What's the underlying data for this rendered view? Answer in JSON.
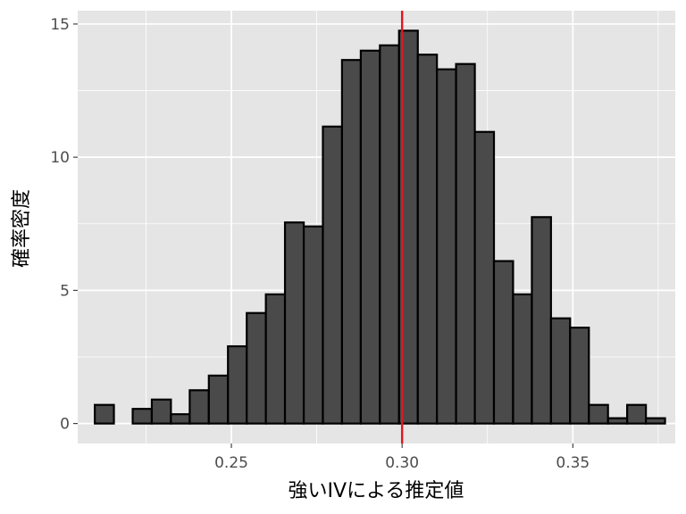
{
  "chart_data": {
    "type": "bar",
    "subtype": "histogram",
    "title": "",
    "xlabel": "強いIVによる推定値",
    "ylabel": "確率密度",
    "xlim": [
      0.205,
      0.38
    ],
    "ylim": [
      -0.75,
      15.5
    ],
    "x_ticks": [
      0.25,
      0.3,
      0.35
    ],
    "x_tick_labels": [
      "0.25",
      "0.30",
      "0.35"
    ],
    "y_ticks": [
      0,
      5,
      10,
      15
    ],
    "y_tick_labels": [
      "0",
      "5",
      "10",
      "15"
    ],
    "grid": true,
    "legend": "none",
    "bin_width": 0.005567,
    "bins": [
      {
        "x0": 0.21,
        "x1": 0.2156,
        "density": 0.7
      },
      {
        "x0": 0.2156,
        "x1": 0.2211,
        "density": 0.0
      },
      {
        "x0": 0.2211,
        "x1": 0.2267,
        "density": 0.55
      },
      {
        "x0": 0.2267,
        "x1": 0.2323,
        "density": 0.9
      },
      {
        "x0": 0.2323,
        "x1": 0.2378,
        "density": 0.35
      },
      {
        "x0": 0.2378,
        "x1": 0.2434,
        "density": 1.25
      },
      {
        "x0": 0.2434,
        "x1": 0.249,
        "density": 1.8
      },
      {
        "x0": 0.249,
        "x1": 0.2545,
        "density": 2.9
      },
      {
        "x0": 0.2545,
        "x1": 0.2601,
        "density": 4.15
      },
      {
        "x0": 0.2601,
        "x1": 0.2657,
        "density": 4.85
      },
      {
        "x0": 0.2657,
        "x1": 0.2712,
        "density": 7.55
      },
      {
        "x0": 0.2712,
        "x1": 0.2768,
        "density": 7.4
      },
      {
        "x0": 0.2768,
        "x1": 0.2824,
        "density": 11.15
      },
      {
        "x0": 0.2824,
        "x1": 0.2879,
        "density": 13.65
      },
      {
        "x0": 0.2879,
        "x1": 0.2935,
        "density": 14.0
      },
      {
        "x0": 0.2935,
        "x1": 0.2991,
        "density": 14.2
      },
      {
        "x0": 0.2991,
        "x1": 0.3046,
        "density": 14.75
      },
      {
        "x0": 0.3046,
        "x1": 0.3102,
        "density": 13.85
      },
      {
        "x0": 0.3102,
        "x1": 0.3158,
        "density": 13.3
      },
      {
        "x0": 0.3158,
        "x1": 0.3213,
        "density": 13.5
      },
      {
        "x0": 0.3213,
        "x1": 0.3269,
        "density": 10.95
      },
      {
        "x0": 0.3269,
        "x1": 0.3325,
        "density": 6.1
      },
      {
        "x0": 0.3325,
        "x1": 0.338,
        "density": 4.85
      },
      {
        "x0": 0.338,
        "x1": 0.3436,
        "density": 7.75
      },
      {
        "x0": 0.3436,
        "x1": 0.3492,
        "density": 3.95
      },
      {
        "x0": 0.3492,
        "x1": 0.3547,
        "density": 3.6
      },
      {
        "x0": 0.3547,
        "x1": 0.3603,
        "density": 0.7
      },
      {
        "x0": 0.3603,
        "x1": 0.3659,
        "density": 0.2
      },
      {
        "x0": 0.3659,
        "x1": 0.3714,
        "density": 0.7
      },
      {
        "x0": 0.3714,
        "x1": 0.377,
        "density": 0.2
      }
    ],
    "reference_line": {
      "orientation": "vertical",
      "x": 0.3,
      "color": "#e8141b"
    },
    "colors": {
      "panel_background": "#e5e5e5",
      "gridline": "#ffffff",
      "bar_fill": "#4a4a4a",
      "bar_outline": "#000000",
      "tick_label": "#4d4d4d",
      "tick_mark": "#333333"
    }
  }
}
